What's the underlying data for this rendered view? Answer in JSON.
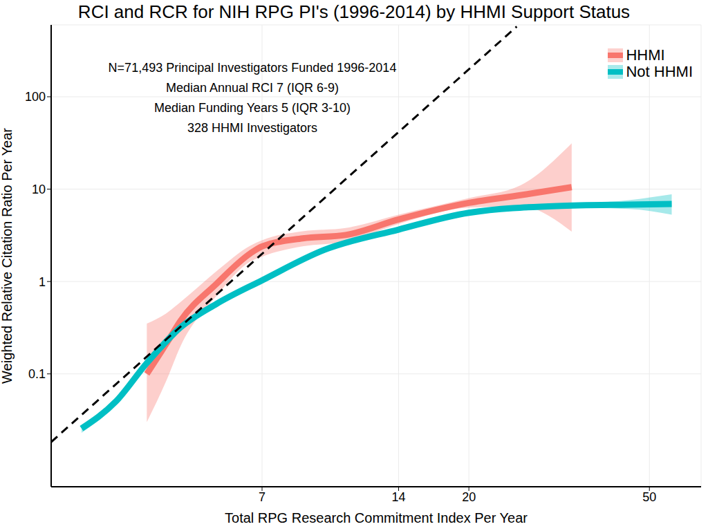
{
  "chart_data": {
    "type": "line",
    "title": "RCI and RCR for NIH RPG PI's (1996-2014) by HHMI Support Status",
    "x_label": "Total RPG Research Commitment Index Per Year",
    "y_label": "Weighted Relative Citation Ratio Per Year",
    "annotations": [
      "N=71,493 Principal Investigators Funded 1996-2014",
      "Median Annual RCI 7 (IQR 6-9)",
      "Median Funding Years 5 (IQR 3-10)",
      "328 HHMI Investigators"
    ],
    "log": true,
    "grid": true,
    "legend": "top-right",
    "xlim": [
      2.4,
      65
    ],
    "xticks": [
      7,
      14,
      20,
      50
    ],
    "ylim": [
      0.006,
      600
    ],
    "yticks": [
      0.1,
      1,
      10,
      100
    ],
    "series": [
      {
        "name": "HHMI",
        "color": "#F8766D",
        "x": [
          3.9,
          4.3,
          4.63,
          5.56,
          6.6,
          7,
          8.6,
          10.7,
          14,
          20,
          26,
          33.7
        ],
        "values": [
          0.1,
          0.21,
          0.377,
          0.95,
          2.02,
          2.4,
          2.93,
          3.19,
          4.7,
          7.1,
          8.6,
          10.5
        ],
        "lower": [
          0.03,
          0.083,
          0.2,
          0.7,
          1.65,
          1.86,
          2.4,
          2.7,
          4.2,
          6.3,
          6.5,
          3.47
        ],
        "upper": [
          0.35,
          0.45,
          0.6,
          1.3,
          2.45,
          2.8,
          3.5,
          3.8,
          5.3,
          8.0,
          11,
          31.4
        ]
      },
      {
        "name": "Not HHMI",
        "color": "#00BFC4",
        "x": [
          2.8,
          3.33,
          3.9,
          4.63,
          5.56,
          7,
          9.6,
          14,
          20,
          31.3,
          45,
          56
        ],
        "values": [
          0.0256,
          0.05,
          0.131,
          0.319,
          0.574,
          1.03,
          2.2,
          3.65,
          5.55,
          6.57,
          6.8,
          6.9
        ],
        "lower": [
          0.023,
          0.046,
          0.124,
          0.306,
          0.553,
          1.0,
          2.13,
          3.55,
          5.4,
          6.3,
          6.1,
          5.3
        ],
        "upper": [
          0.028,
          0.054,
          0.138,
          0.332,
          0.595,
          1.06,
          2.27,
          3.75,
          5.7,
          6.85,
          7.6,
          8.8
        ]
      }
    ],
    "diagonal": {
      "x": [
        2.4,
        25.5
      ],
      "values": [
        0.0183,
        575
      ],
      "color": "#000000",
      "line_style": "dashed"
    }
  }
}
